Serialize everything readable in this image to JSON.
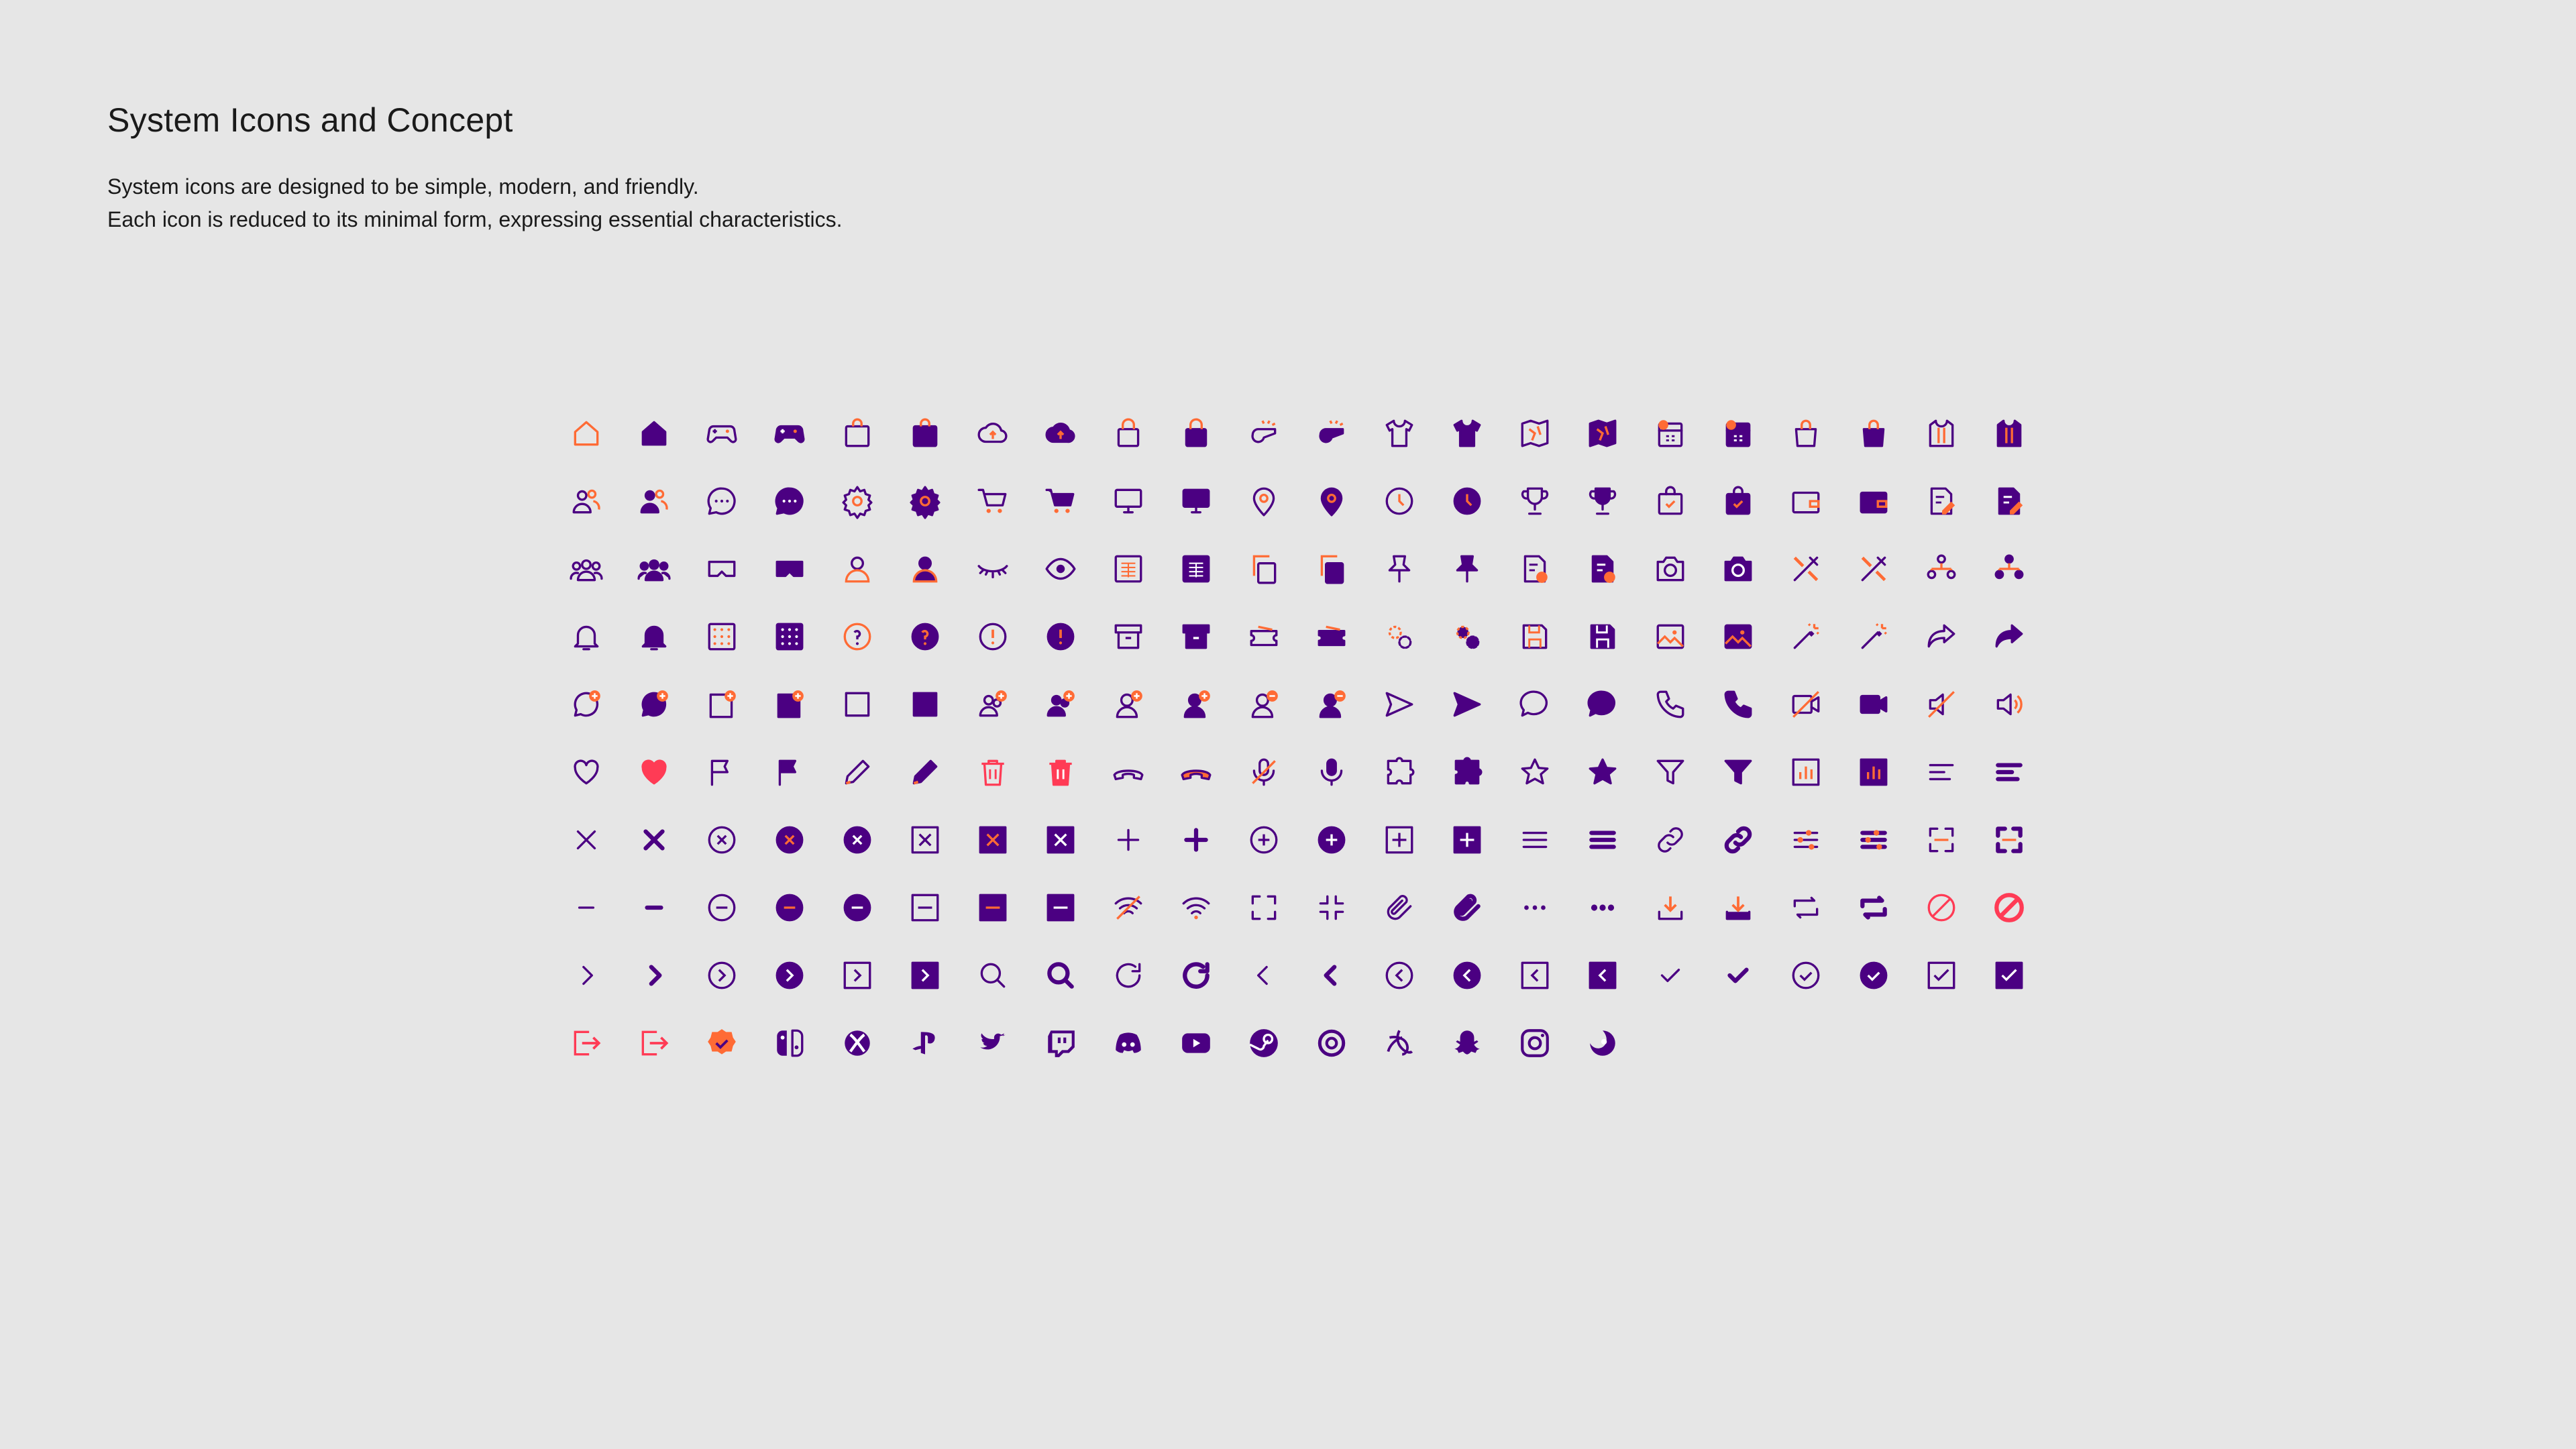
{
  "header": {
    "title": "System Icons and Concept",
    "description_lines": [
      "System icons are designed to be simple, modern, and friendly.",
      "Each icon is reduced to its minimal form, expressing essential characteristics."
    ]
  },
  "colors": {
    "background": "#e6e6e6",
    "primary": "#4b0082",
    "accent_orange": "#ff6b35",
    "accent_red": "#ff3b55",
    "text": "#1a1a1a"
  },
  "icon_grid": {
    "columns": 22,
    "rows": [
      [
        "home",
        "home-filled",
        "gamepad",
        "gamepad-filled",
        "shopping-bag",
        "shopping-bag-filled",
        "cloud-upload",
        "cloud-upload-filled",
        "lock-bag",
        "lock-bag-filled",
        "whistle",
        "whistle-filled",
        "shirt",
        "shirt-filled",
        "map",
        "map-filled",
        "calendar-clock",
        "calendar-clock-filled",
        "bag-open",
        "bag-open-filled",
        "jersey",
        "jersey-filled"
      ],
      [
        "user-group",
        "user-group-filled",
        "chat",
        "chat-filled",
        "settings",
        "settings-filled",
        "cart",
        "cart-filled",
        "monitor",
        "monitor-filled",
        "location",
        "location-filled",
        "clock",
        "clock-filled",
        "trophy",
        "trophy-filled",
        "shopping-bag-check",
        "shopping-bag-check-filled",
        "wallet",
        "wallet-filled",
        "edit-doc",
        "edit-doc-filled"
      ],
      [
        "team",
        "team-filled",
        "vr",
        "vr-filled",
        "user",
        "user-filled",
        "eye-closed",
        "eye",
        "table",
        "table-filled",
        "copy",
        "copy-filled",
        "pin",
        "pin-filled",
        "doc-clock",
        "doc-clock-filled",
        "camera",
        "camera-filled",
        "tools",
        "tools-filled",
        "network",
        "network-filled"
      ],
      [
        "bell",
        "bell-filled",
        "grid",
        "grid-filled",
        "help",
        "help-filled",
        "info",
        "info-filled",
        "archive",
        "archive-filled",
        "ticket",
        "ticket-filled",
        "gears",
        "gears-filled",
        "save",
        "save-filled",
        "image",
        "image-filled",
        "magic-wand",
        "magic-wand-filled",
        "share",
        "share-filled"
      ],
      [
        "chat-add",
        "chat-add-filled",
        "box-add",
        "box-add-filled",
        "gamepad-add",
        "gamepad-add-filled",
        "group-add",
        "group-add-filled",
        "user-add",
        "user-add-filled",
        "user-remove",
        "user-remove-filled",
        "send",
        "send-filled",
        "speech",
        "speech-filled",
        "phone",
        "phone-filled",
        "video-off",
        "video-filled",
        "volume-off",
        "volume"
      ],
      [
        "heart",
        "heart-filled",
        "flag",
        "flag-filled",
        "pencil",
        "pencil-filled",
        "trash",
        "trash-filled",
        "phone-hangup",
        "phone-hangup-filled",
        "mic-off",
        "mic",
        "puzzle",
        "puzzle-filled",
        "star",
        "star-filled",
        "filter",
        "filter-filled",
        "chart",
        "chart-filled",
        "align-left",
        "align-left-bold"
      ],
      [
        "close",
        "close-bold",
        "close-circle",
        "close-circle-filled-accent",
        "close-circle-filled",
        "close-square",
        "close-square-filled-accent",
        "close-square-filled",
        "plus",
        "plus-bold",
        "plus-circle",
        "plus-circle-filled",
        "plus-square",
        "plus-square-filled",
        "menu",
        "menu-bold",
        "link",
        "link-bold",
        "sliders",
        "sliders-bold",
        "focus",
        "focus-bold"
      ],
      [
        "minus",
        "minus-bold",
        "minus-circle",
        "minus-circle-filled-accent",
        "minus-circle-filled",
        "minus-square",
        "minus-square-filled-accent",
        "minus-square-filled",
        "wifi-off",
        "wifi",
        "fullscreen",
        "exit-fullscreen",
        "attachment",
        "attachment-bold",
        "more",
        "more-bold",
        "download",
        "download-filled",
        "repeat",
        "repeat-bold",
        "block",
        "block-bold"
      ],
      [
        "chevron-right",
        "chevron-right-bold",
        "chevron-right-circle",
        "chevron-right-circle-filled",
        "chevron-right-square",
        "chevron-right-square-filled",
        "search",
        "search-bold",
        "refresh",
        "refresh-bold",
        "chevron-left",
        "chevron-left-bold",
        "chevron-left-circle",
        "chevron-left-circle-filled",
        "chevron-left-square",
        "chevron-left-square-filled",
        "check",
        "check-bold",
        "check-circle",
        "check-circle-filled",
        "check-square",
        "check-square-filled"
      ],
      [
        "logout",
        "logout-filled",
        "verified",
        "nintendo-switch",
        "xbox",
        "playstation",
        "twitter",
        "twitch",
        "discord",
        "youtube",
        "steam",
        "origin",
        "battlenet",
        "snapchat",
        "instagram",
        "ubisoft"
      ]
    ]
  }
}
